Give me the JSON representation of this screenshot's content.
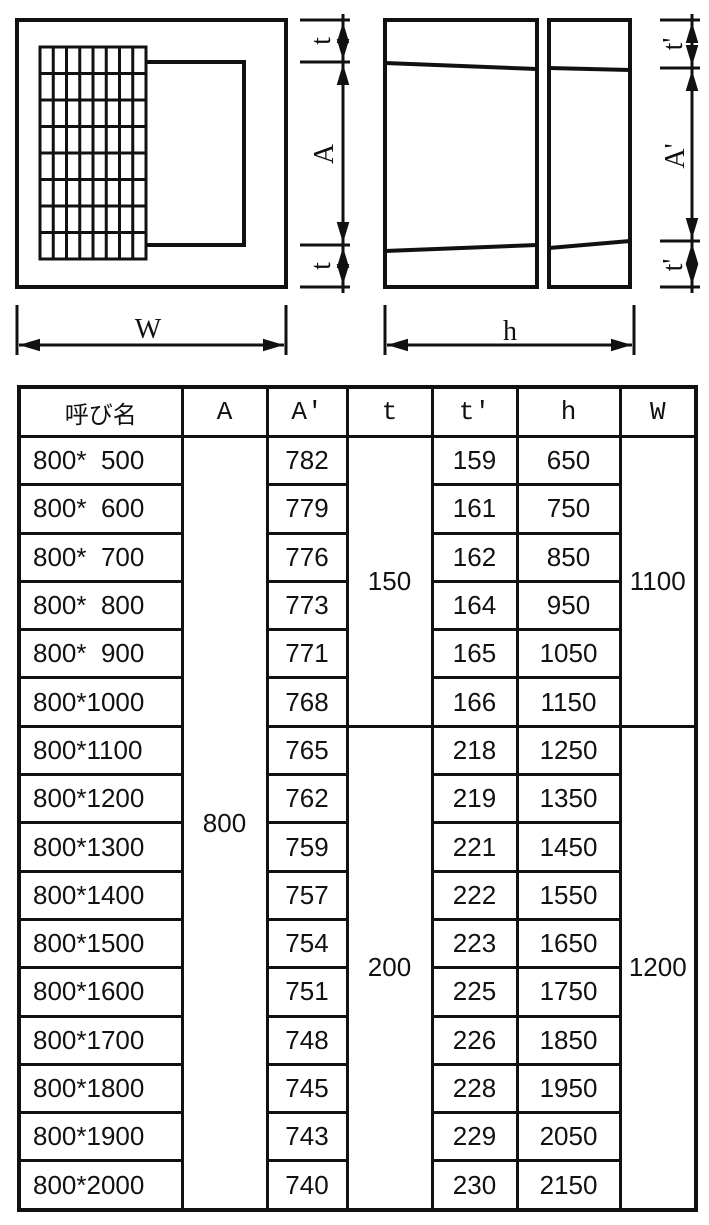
{
  "drawing": {
    "labels": {
      "W": "W",
      "h": "h",
      "t_top": "t",
      "A": "A",
      "t_bottom": "t",
      "t_prime_top": "t'",
      "A_prime": "A'",
      "t_prime_bottom": "t'"
    }
  },
  "table": {
    "headers": [
      "呼び名",
      "A",
      "A'",
      "t",
      "t'",
      "h",
      "W"
    ],
    "A_value": "800",
    "t_groups": [
      "150",
      "200"
    ],
    "W_groups": [
      "1100",
      "1200"
    ],
    "rows": [
      {
        "name": "800*  500",
        "A_prime": "782",
        "t_prime": "159",
        "h": "650"
      },
      {
        "name": "800*  600",
        "A_prime": "779",
        "t_prime": "161",
        "h": "750"
      },
      {
        "name": "800*  700",
        "A_prime": "776",
        "t_prime": "162",
        "h": "850"
      },
      {
        "name": "800*  800",
        "A_prime": "773",
        "t_prime": "164",
        "h": "950"
      },
      {
        "name": "800*  900",
        "A_prime": "771",
        "t_prime": "165",
        "h": "1050"
      },
      {
        "name": "800*1000",
        "A_prime": "768",
        "t_prime": "166",
        "h": "1150"
      },
      {
        "name": "800*1100",
        "A_prime": "765",
        "t_prime": "218",
        "h": "1250"
      },
      {
        "name": "800*1200",
        "A_prime": "762",
        "t_prime": "219",
        "h": "1350"
      },
      {
        "name": "800*1300",
        "A_prime": "759",
        "t_prime": "221",
        "h": "1450"
      },
      {
        "name": "800*1400",
        "A_prime": "757",
        "t_prime": "222",
        "h": "1550"
      },
      {
        "name": "800*1500",
        "A_prime": "754",
        "t_prime": "223",
        "h": "1650"
      },
      {
        "name": "800*1600",
        "A_prime": "751",
        "t_prime": "225",
        "h": "1750"
      },
      {
        "name": "800*1700",
        "A_prime": "748",
        "t_prime": "226",
        "h": "1850"
      },
      {
        "name": "800*1800",
        "A_prime": "745",
        "t_prime": "228",
        "h": "1950"
      },
      {
        "name": "800*1900",
        "A_prime": "743",
        "t_prime": "229",
        "h": "2050"
      },
      {
        "name": "800*2000",
        "A_prime": "740",
        "t_prime": "230",
        "h": "2150"
      }
    ]
  }
}
